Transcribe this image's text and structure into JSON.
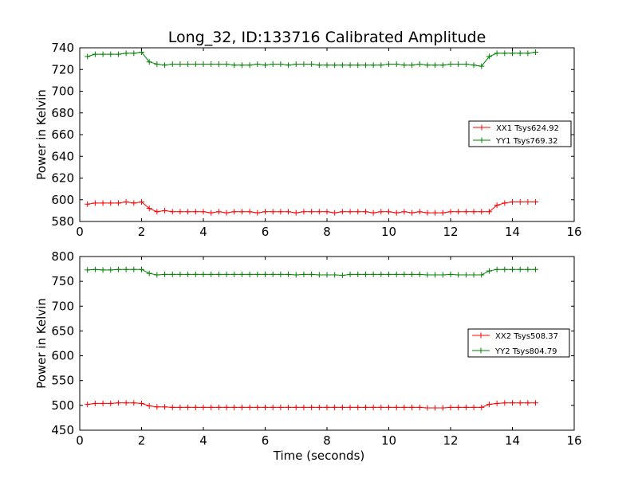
{
  "title": "Long_32, ID:133716 Calibrated Amplitude",
  "colors": {
    "XX": "#ff0000",
    "YY": "#008000"
  },
  "chart_data": [
    {
      "type": "line",
      "xlabel": "",
      "ylabel": "Power in Kelvin",
      "xlim": [
        0,
        16
      ],
      "ylim": [
        580,
        740
      ],
      "xticks": [
        0,
        2,
        4,
        6,
        8,
        10,
        12,
        14,
        16
      ],
      "yticks": [
        580,
        600,
        620,
        640,
        660,
        680,
        700,
        720,
        740
      ],
      "legend_position": "center-right",
      "x": [
        0.25,
        0.5,
        0.75,
        1.0,
        1.25,
        1.5,
        1.75,
        2.0,
        2.25,
        2.5,
        2.75,
        3.0,
        3.25,
        3.5,
        3.75,
        4.0,
        4.25,
        4.5,
        4.75,
        5.0,
        5.25,
        5.5,
        5.75,
        6.0,
        6.25,
        6.5,
        6.75,
        7.0,
        7.25,
        7.5,
        7.75,
        8.0,
        8.25,
        8.5,
        8.75,
        9.0,
        9.25,
        9.5,
        9.75,
        10.0,
        10.25,
        10.5,
        10.75,
        11.0,
        11.25,
        11.5,
        11.75,
        12.0,
        12.25,
        12.5,
        12.75,
        13.0,
        13.25,
        13.5,
        13.75,
        14.0,
        14.25,
        14.5,
        14.75
      ],
      "series": [
        {
          "name": "XX1 Tsys624.92",
          "color": "#ff0000",
          "values": [
            596,
            597,
            597,
            597,
            597,
            598,
            597,
            598,
            592,
            589,
            590,
            589,
            589,
            589,
            589,
            589,
            588,
            589,
            588,
            589,
            589,
            589,
            588,
            589,
            589,
            589,
            589,
            588,
            589,
            589,
            589,
            589,
            588,
            589,
            589,
            589,
            589,
            588,
            589,
            589,
            588,
            589,
            588,
            589,
            588,
            588,
            588,
            589,
            589,
            589,
            589,
            589,
            589,
            595,
            597,
            598,
            598,
            598,
            598
          ]
        },
        {
          "name": "YY1 Tsys769.32",
          "color": "#008000",
          "values": [
            732,
            734,
            734,
            734,
            734,
            735,
            735,
            736,
            727,
            725,
            724,
            725,
            725,
            725,
            725,
            725,
            725,
            725,
            725,
            724,
            724,
            724,
            725,
            724,
            725,
            725,
            724,
            725,
            725,
            725,
            724,
            724,
            724,
            724,
            724,
            724,
            724,
            724,
            724,
            725,
            725,
            724,
            724,
            725,
            724,
            724,
            724,
            725,
            725,
            725,
            724,
            723,
            732,
            735,
            735,
            735,
            735,
            735,
            736
          ]
        }
      ]
    },
    {
      "type": "line",
      "xlabel": "Time (seconds)",
      "ylabel": "Power in Kelvin",
      "xlim": [
        0,
        16
      ],
      "ylim": [
        450,
        800
      ],
      "xticks": [
        0,
        2,
        4,
        6,
        8,
        10,
        12,
        14,
        16
      ],
      "yticks": [
        450,
        500,
        550,
        600,
        650,
        700,
        750,
        800
      ],
      "legend_position": "center-right",
      "x": [
        0.25,
        0.5,
        0.75,
        1.0,
        1.25,
        1.5,
        1.75,
        2.0,
        2.25,
        2.5,
        2.75,
        3.0,
        3.25,
        3.5,
        3.75,
        4.0,
        4.25,
        4.5,
        4.75,
        5.0,
        5.25,
        5.5,
        5.75,
        6.0,
        6.25,
        6.5,
        6.75,
        7.0,
        7.25,
        7.5,
        7.75,
        8.0,
        8.25,
        8.5,
        8.75,
        9.0,
        9.25,
        9.5,
        9.75,
        10.0,
        10.25,
        10.5,
        10.75,
        11.0,
        11.25,
        11.5,
        11.75,
        12.0,
        12.25,
        12.5,
        12.75,
        13.0,
        13.25,
        13.5,
        13.75,
        14.0,
        14.25,
        14.5,
        14.75
      ],
      "series": [
        {
          "name": "XX2 Tsys508.37",
          "color": "#ff0000",
          "values": [
            502,
            504,
            504,
            504,
            505,
            505,
            505,
            504,
            499,
            497,
            497,
            496,
            496,
            496,
            496,
            496,
            496,
            496,
            496,
            496,
            496,
            496,
            496,
            496,
            496,
            496,
            496,
            496,
            496,
            496,
            496,
            496,
            496,
            496,
            496,
            496,
            496,
            496,
            496,
            496,
            496,
            496,
            496,
            496,
            495,
            495,
            495,
            496,
            496,
            496,
            496,
            496,
            502,
            504,
            505,
            505,
            505,
            505,
            505
          ]
        },
        {
          "name": "YY2 Tsys804.79",
          "color": "#008000",
          "values": [
            773,
            774,
            773,
            773,
            774,
            774,
            774,
            774,
            766,
            763,
            764,
            764,
            764,
            764,
            764,
            764,
            764,
            764,
            764,
            764,
            764,
            764,
            764,
            764,
            764,
            764,
            764,
            763,
            764,
            764,
            763,
            763,
            763,
            762,
            764,
            764,
            764,
            764,
            764,
            764,
            764,
            764,
            764,
            764,
            763,
            763,
            763,
            764,
            763,
            763,
            763,
            763,
            771,
            774,
            774,
            774,
            774,
            774,
            774
          ]
        }
      ]
    }
  ]
}
